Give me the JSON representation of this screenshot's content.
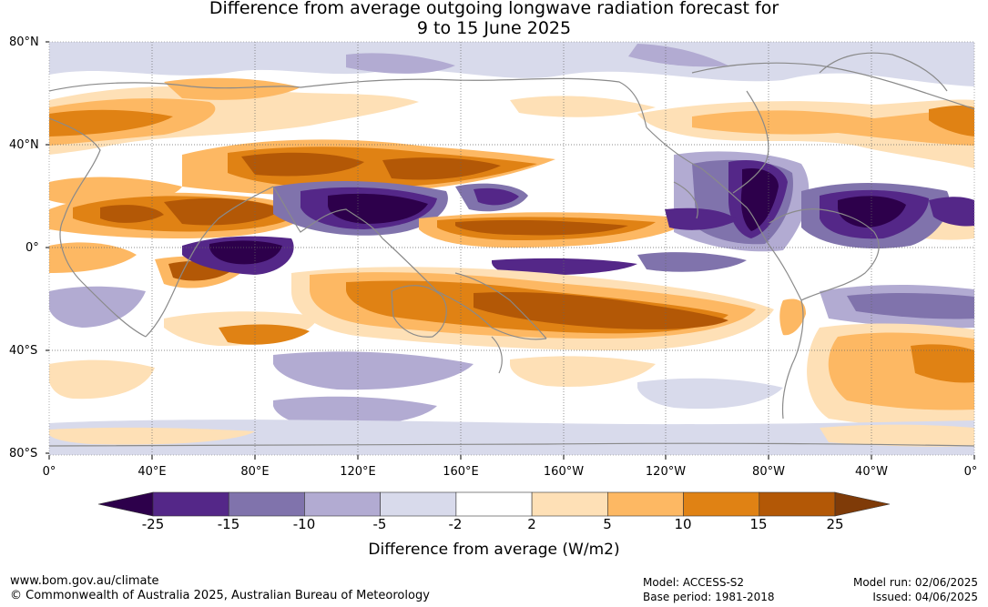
{
  "title": {
    "line1": "Difference from average outgoing longwave radiation forecast for",
    "line2": "9 to 15 June 2025"
  },
  "map": {
    "lat_labels": [
      "80°N",
      "40°N",
      "0°",
      "40°S",
      "80°S"
    ],
    "lon_labels": [
      "0°",
      "40°E",
      "80°E",
      "120°E",
      "160°E",
      "160°W",
      "120°W",
      "80°W",
      "40°W",
      "0°"
    ],
    "coastline_color": "#8a8a8a",
    "grid": "dotted"
  },
  "colorbar": {
    "title": "Difference from average (W/m2)",
    "ticks": [
      "-25",
      "-15",
      "-10",
      "-5",
      "-2",
      "2",
      "5",
      "10",
      "15",
      "25"
    ],
    "colors": [
      "#2d004b",
      "#542788",
      "#8073ac",
      "#b2abd2",
      "#d8daeb",
      "#ffffff",
      "#fee0b6",
      "#fdb863",
      "#e08214",
      "#b35806",
      "#7f3b08"
    ],
    "extend": "both"
  },
  "footer": {
    "site": "www.bom.gov.au/climate",
    "copyright": "© Commonwealth of Australia 2025, Australian Bureau of Meteorology",
    "model": "Model: ACCESS-S2",
    "base_period": "Base period: 1981-2018",
    "model_run": "Model run: 02/06/2025",
    "issued": "Issued: 04/06/2025"
  }
}
